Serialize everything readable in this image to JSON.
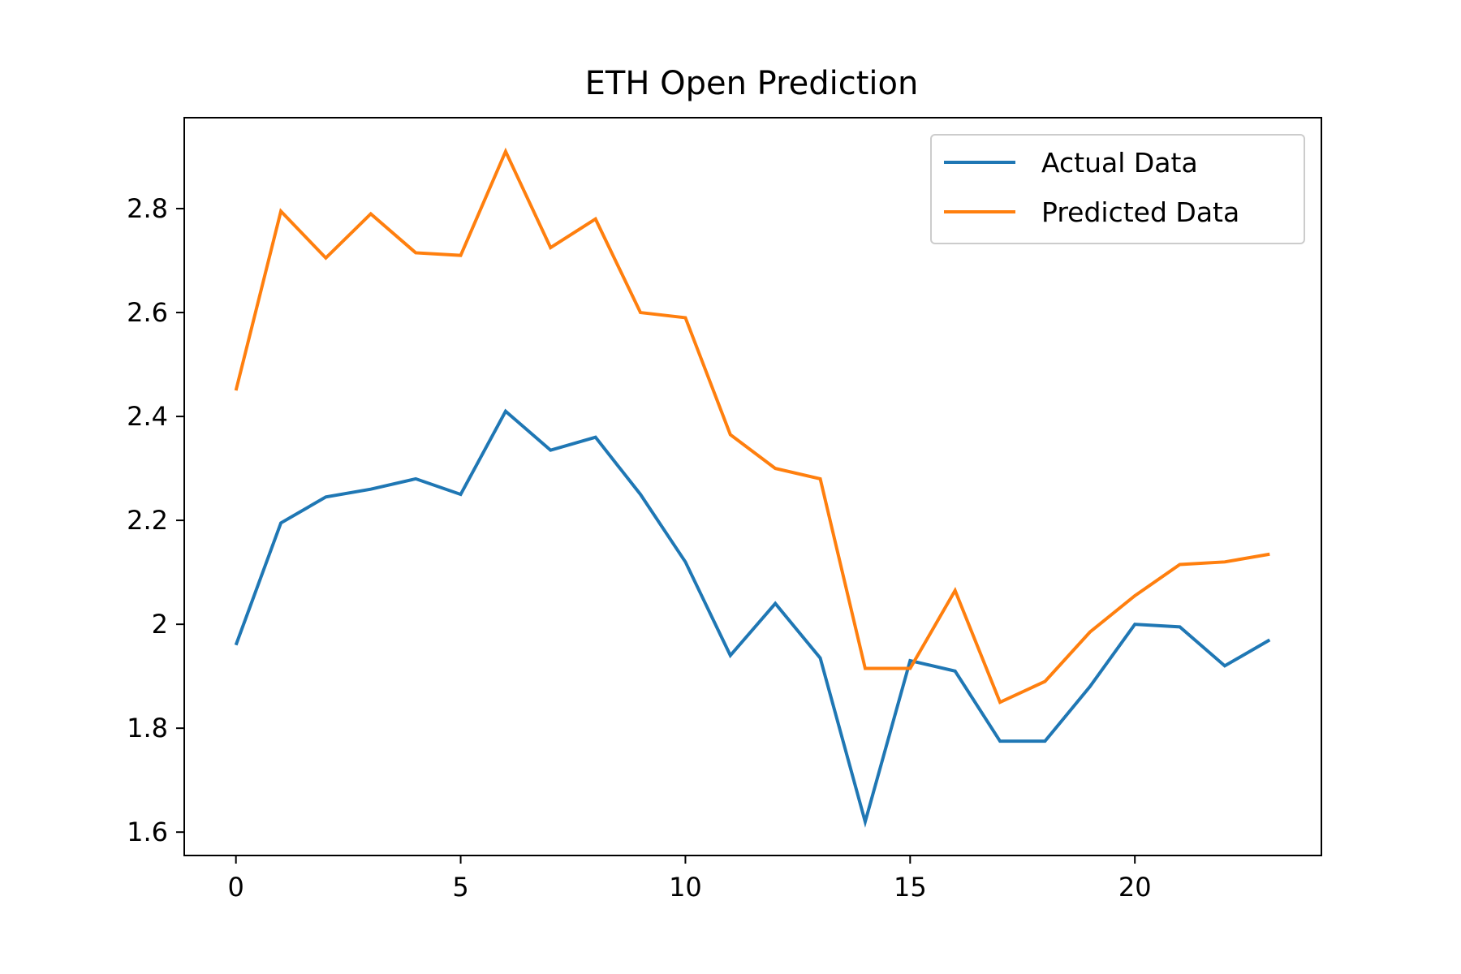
{
  "chart_data": {
    "type": "line",
    "title": "ETH Open Prediction",
    "xlabel": "",
    "ylabel": "",
    "x": [
      0,
      1,
      2,
      3,
      4,
      5,
      6,
      7,
      8,
      9,
      10,
      11,
      12,
      13,
      14,
      15,
      16,
      17,
      18,
      19,
      20,
      21,
      22,
      23
    ],
    "series": [
      {
        "name": "Actual Data",
        "color": "#1f77b4",
        "values": [
          1.96,
          2.195,
          2.245,
          2.26,
          2.28,
          2.25,
          2.41,
          2.335,
          2.36,
          2.25,
          2.12,
          1.94,
          2.04,
          1.935,
          1.62,
          1.93,
          1.91,
          1.775,
          1.775,
          1.88,
          2.0,
          1.995,
          1.92,
          1.97
        ]
      },
      {
        "name": "Predicted Data",
        "color": "#ff7f0e",
        "values": [
          2.45,
          2.795,
          2.705,
          2.79,
          2.715,
          2.71,
          2.91,
          2.725,
          2.78,
          2.6,
          2.59,
          2.365,
          2.3,
          2.28,
          1.915,
          1.915,
          2.065,
          1.85,
          1.89,
          1.985,
          2.055,
          2.115,
          2.12,
          2.135
        ]
      }
    ],
    "xlim": [
      -1.15,
      24.15
    ],
    "ylim": [
      1.555,
      2.975
    ],
    "xticks": [
      0,
      5,
      10,
      15,
      20
    ],
    "yticks": [
      1.6,
      1.8,
      2.0,
      2.2,
      2.4,
      2.6,
      2.8
    ],
    "grid": false,
    "legend_position": "top-right"
  }
}
